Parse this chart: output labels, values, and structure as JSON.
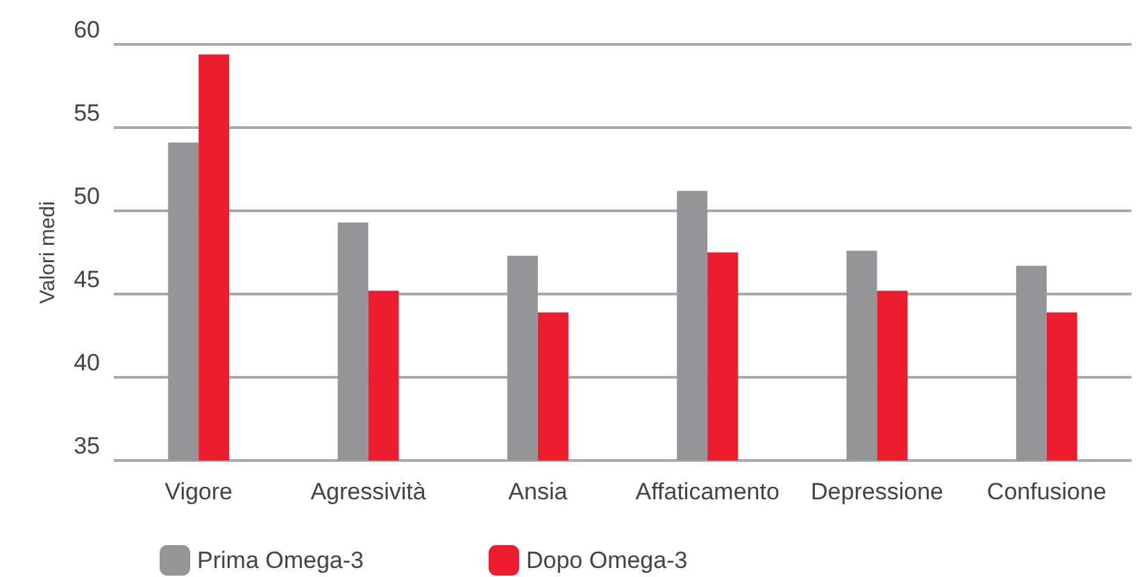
{
  "chart_data": {
    "type": "bar",
    "ylabel": "Valori medi",
    "categories": [
      "Vigore",
      "Agressività",
      "Ansia",
      "Affaticamento",
      "Depressione",
      "Confusione"
    ],
    "series": [
      {
        "name": "Prima Omega-3",
        "color": "#959598",
        "values": [
          54.1,
          49.3,
          47.3,
          51.2,
          47.6,
          46.7
        ]
      },
      {
        "name": "Dopo Omega-3",
        "color": "#ed1c2e",
        "values": [
          59.4,
          45.2,
          43.9,
          47.5,
          45.2,
          43.9
        ]
      }
    ],
    "ylim": [
      35,
      60
    ],
    "yticks": [
      35,
      40,
      45,
      50,
      55,
      60
    ],
    "grid": "y",
    "legend": "bottom left"
  }
}
